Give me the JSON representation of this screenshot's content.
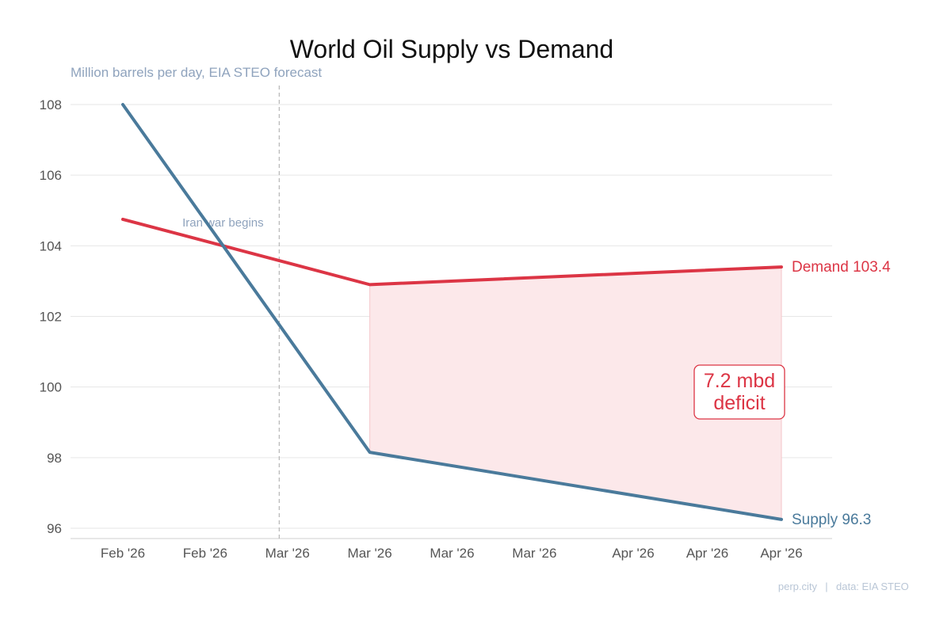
{
  "chart_data": {
    "type": "line",
    "title": "World Oil Supply vs Demand",
    "subtitle": "Million barrels per day, EIA STEO forecast",
    "xlabel": "",
    "ylabel": "",
    "ylim": [
      95.7,
      108.5
    ],
    "yticks": [
      96,
      98,
      100,
      102,
      104,
      106,
      108
    ],
    "x": [
      0,
      3.0,
      8.0
    ],
    "xlim": [
      -0.3,
      8.8
    ],
    "xticks": [
      {
        "pos": 0,
        "label": "Feb '26"
      },
      {
        "pos": 1,
        "label": "Feb '26"
      },
      {
        "pos": 2,
        "label": "Mar '26"
      },
      {
        "pos": 3,
        "label": "Mar '26"
      },
      {
        "pos": 4,
        "label": "Mar '26"
      },
      {
        "pos": 5,
        "label": "Mar '26"
      },
      {
        "pos": 6.2,
        "label": "Apr '26"
      },
      {
        "pos": 7.1,
        "label": "Apr '26"
      },
      {
        "pos": 8,
        "label": "Apr '26"
      }
    ],
    "series": [
      {
        "name": "Demand",
        "color": "#dc3545",
        "x": [
          0,
          3.0,
          8.0
        ],
        "values": [
          104.75,
          102.9,
          103.4
        ]
      },
      {
        "name": "Supply",
        "color": "#4a7a9b",
        "x": [
          0,
          3.0,
          8.0
        ],
        "values": [
          108.0,
          98.15,
          96.25
        ]
      }
    ],
    "end_labels": [
      {
        "series": "Demand",
        "text": "Demand  103.4"
      },
      {
        "series": "Supply",
        "text": "Supply  96.3"
      }
    ],
    "event": {
      "x": 1.9,
      "label": "Iran war begins"
    },
    "deficit": {
      "from_x": 3.0,
      "to_x": 8.0,
      "fill": "#fce8ea",
      "line1": "7.2 mbd",
      "line2": "deficit"
    },
    "grid": true,
    "legend": "none"
  },
  "footer": {
    "source": "perp.city",
    "separator": "|",
    "data": "data: EIA STEO"
  }
}
